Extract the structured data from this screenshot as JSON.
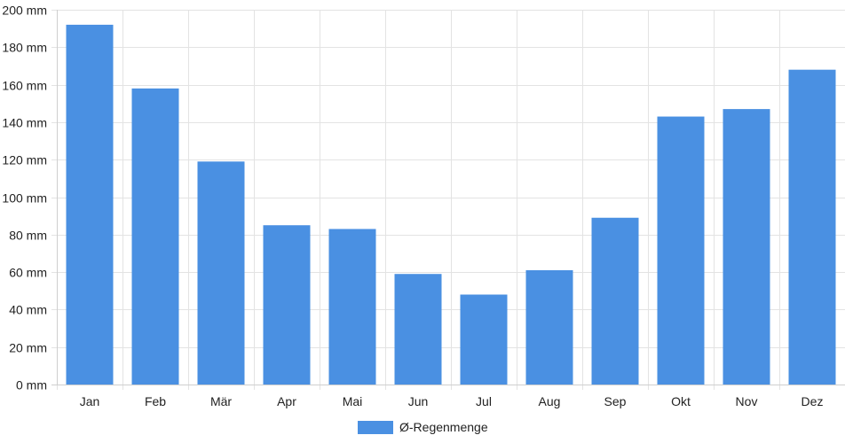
{
  "chart_data": {
    "type": "bar",
    "categories": [
      "Jan",
      "Feb",
      "Mär",
      "Apr",
      "Mai",
      "Jun",
      "Jul",
      "Aug",
      "Sep",
      "Okt",
      "Nov",
      "Dez"
    ],
    "series": [
      {
        "name": "Ø-Regenmenge",
        "values": [
          192,
          158,
          119,
          85,
          83,
          59,
          48,
          61,
          89,
          143,
          147,
          168
        ],
        "color": "#4a90e2"
      }
    ],
    "ylim": [
      0,
      200
    ],
    "yticks": [
      0,
      20,
      40,
      60,
      80,
      100,
      120,
      140,
      160,
      180,
      200
    ],
    "y_unit": "mm",
    "grid": true,
    "legend_placement": "bottom-center"
  }
}
